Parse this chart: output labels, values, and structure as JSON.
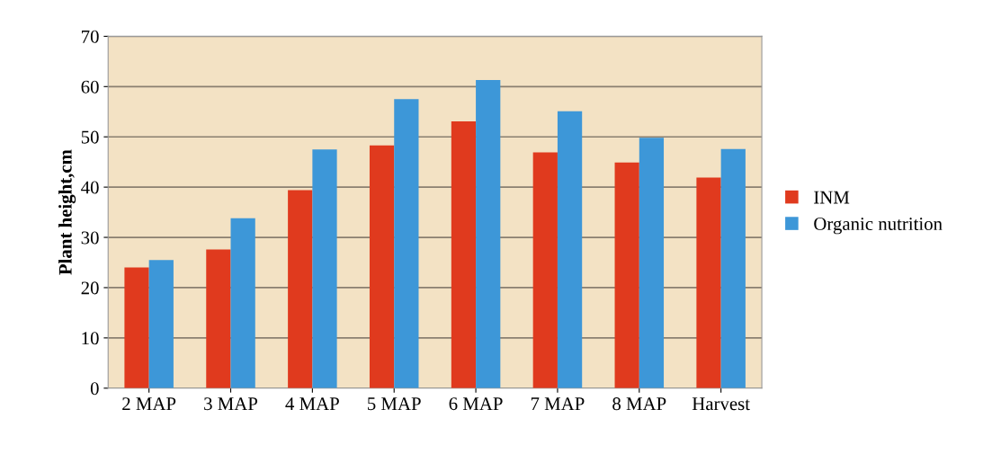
{
  "chart_data": {
    "type": "bar",
    "ylabel": "Plant height,cm",
    "categories": [
      "2 MAP",
      "3 MAP",
      "4 MAP",
      "5 MAP",
      "6 MAP",
      "7 MAP",
      "8 MAP",
      "Harvest"
    ],
    "series": [
      {
        "name": "INM",
        "color": "#e03a1e",
        "values": [
          24.0,
          27.6,
          39.4,
          48.3,
          53.1,
          46.9,
          44.9,
          41.9
        ]
      },
      {
        "name": "Organic nutrition",
        "color": "#3d97d8",
        "values": [
          25.5,
          33.8,
          47.5,
          57.5,
          61.3,
          55.1,
          49.8,
          47.6
        ]
      }
    ],
    "ylim": [
      0,
      70
    ],
    "yticks": [
      0,
      10,
      20,
      30,
      40,
      50,
      60,
      70
    ],
    "grid": "y",
    "legend": "right"
  }
}
